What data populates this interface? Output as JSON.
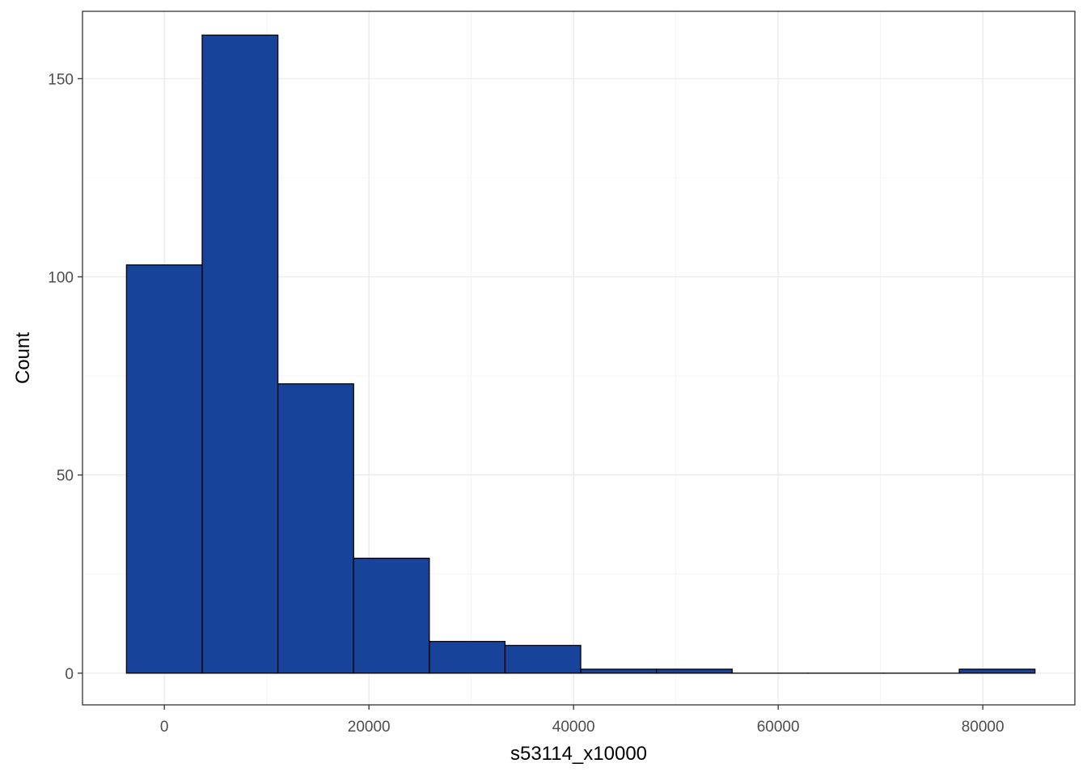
{
  "chart_data": {
    "type": "histogram",
    "xlabel": "s53114_x10000",
    "ylabel": "Count",
    "xlim": [
      -8000,
      89000
    ],
    "ylim": [
      -8,
      167
    ],
    "x_ticks": [
      0,
      20000,
      40000,
      60000,
      80000
    ],
    "x_tick_labels": [
      "0",
      "20000",
      "40000",
      "60000",
      "80000"
    ],
    "y_ticks": [
      0,
      50,
      100,
      150
    ],
    "y_tick_labels": [
      "0",
      "50",
      "100",
      "150"
    ],
    "x_minor_ticks": [
      10000,
      30000,
      50000,
      70000
    ],
    "y_minor_ticks": [
      25,
      75,
      125
    ],
    "grid": true,
    "bin_width": 7400,
    "bins": [
      {
        "x0": -3700,
        "x1": 3700,
        "count": 103
      },
      {
        "x0": 3700,
        "x1": 11100,
        "count": 161
      },
      {
        "x0": 11100,
        "x1": 18500,
        "count": 73
      },
      {
        "x0": 18500,
        "x1": 25900,
        "count": 29
      },
      {
        "x0": 25900,
        "x1": 33300,
        "count": 8
      },
      {
        "x0": 33300,
        "x1": 40700,
        "count": 7
      },
      {
        "x0": 40700,
        "x1": 48100,
        "count": 1
      },
      {
        "x0": 48100,
        "x1": 55500,
        "count": 1
      },
      {
        "x0": 55500,
        "x1": 62900,
        "count": 0
      },
      {
        "x0": 62900,
        "x1": 70300,
        "count": 0
      },
      {
        "x0": 70300,
        "x1": 77700,
        "count": 0
      },
      {
        "x0": 77700,
        "x1": 85100,
        "count": 1
      }
    ],
    "colors": {
      "bar_fill": "#17439B",
      "bar_stroke": "#000000",
      "grid_major": "#EBEBEB",
      "grid_minor": "#F5F5F5",
      "panel_border": "#333333"
    }
  }
}
